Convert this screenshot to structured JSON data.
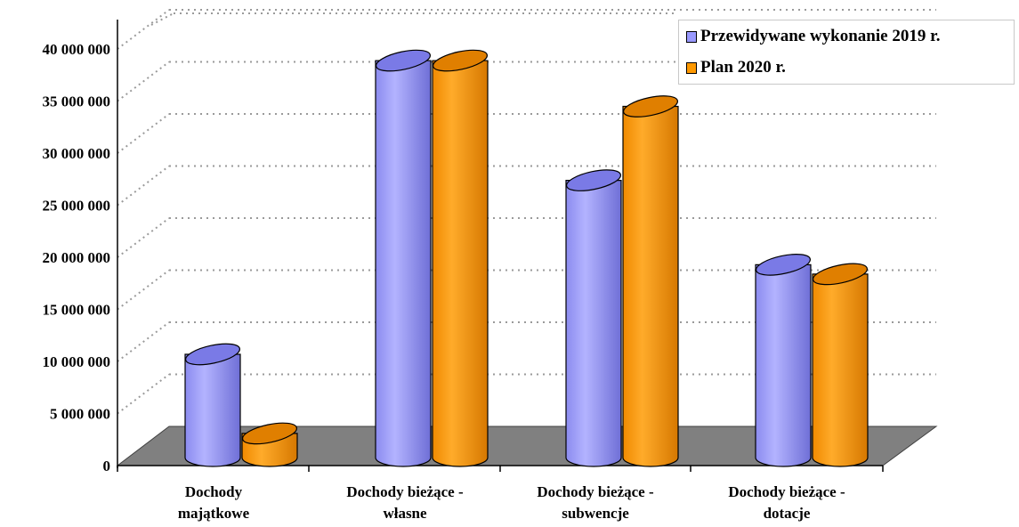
{
  "chart_data": {
    "type": "bar",
    "subtype": "3d-cylinder",
    "categories": [
      [
        "Dochody",
        "majątkowe"
      ],
      [
        "Dochody bieżące -",
        "własne"
      ],
      [
        "Dochody bieżące -",
        "subwencje"
      ],
      [
        "Dochody bieżące -",
        "dotacje"
      ]
    ],
    "series": [
      {
        "name": "Przewidywane wykonanie 2019 r.",
        "color": "#9999ff",
        "values": [
          10600000,
          38800000,
          27300000,
          19200000
        ]
      },
      {
        "name": "Plan 2020 r.",
        "color": "#ff9900",
        "values": [
          3000000,
          38800000,
          34400000,
          18300000
        ]
      }
    ],
    "yticks": [
      "0",
      "5 000 000",
      "10 000 000",
      "15 000 000",
      "20 000 000",
      "25 000 000",
      "30 000 000",
      "35 000 000",
      "40 000 000"
    ],
    "ylim": [
      0,
      40000000
    ],
    "grid": true,
    "legend_position": "top-right",
    "floor_color": "#808080"
  }
}
